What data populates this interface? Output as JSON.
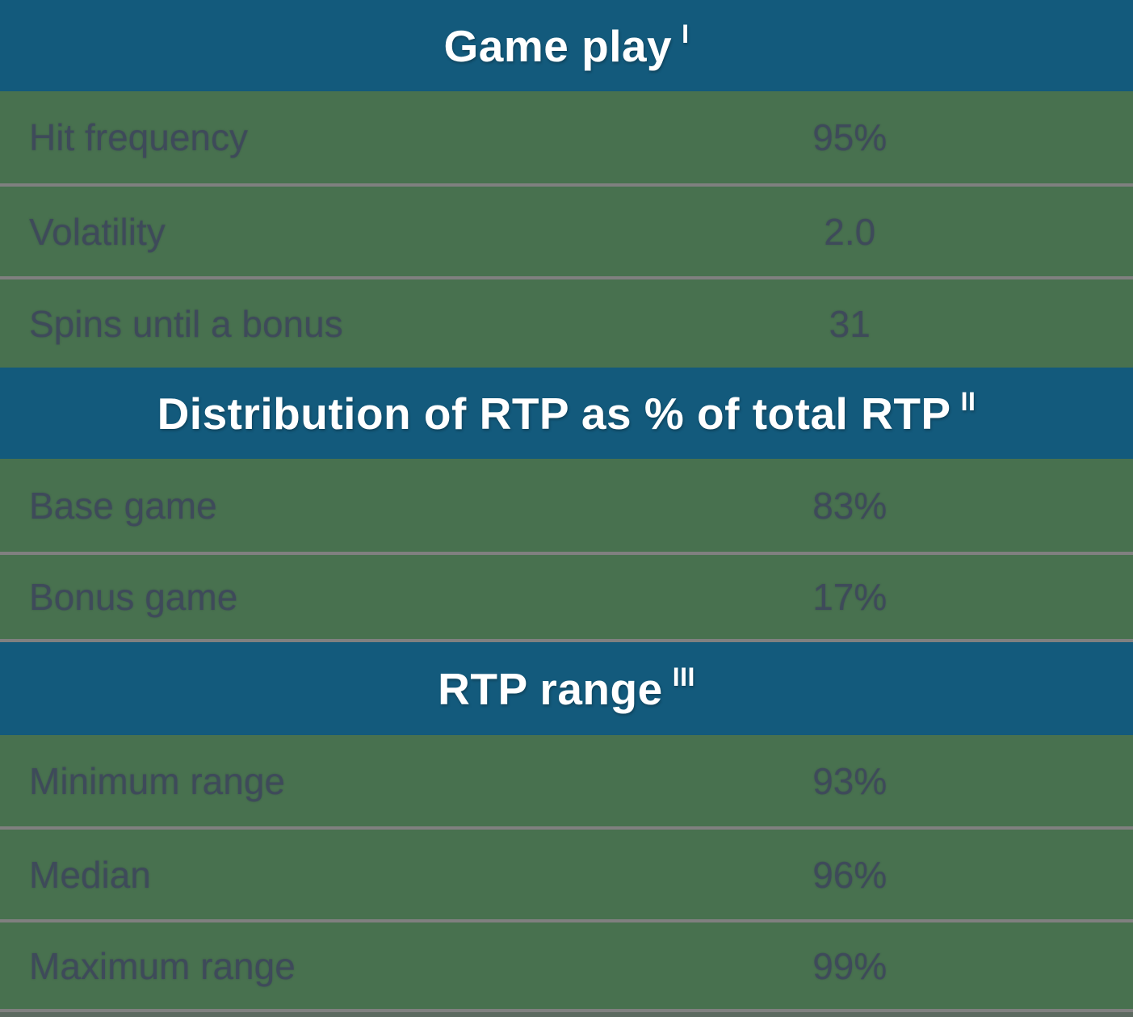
{
  "table": {
    "sections": [
      {
        "title": "Game play",
        "footnote_mark": "I",
        "rows": [
          {
            "label": "Hit frequency",
            "value": "95%"
          },
          {
            "label": "Volatility",
            "value": "2.0"
          },
          {
            "label": "Spins until a bonus",
            "value": "31"
          }
        ]
      },
      {
        "title": "Distribution of RTP as % of total RTP",
        "footnote_mark": "II",
        "rows": [
          {
            "label": "Base game",
            "value": "83%"
          },
          {
            "label": "Bonus game",
            "value": "17%"
          }
        ]
      },
      {
        "title": "RTP range",
        "footnote_mark": "III",
        "rows": [
          {
            "label": "Minimum range",
            "value": "93%"
          },
          {
            "label": "Median",
            "value": "96%"
          },
          {
            "label": "Maximum range",
            "value": "99%"
          }
        ]
      }
    ],
    "colors": {
      "header_bg": "#135A7C",
      "background_green": "#48714F",
      "row_text": "#3E4A5A",
      "header_text": "#FFFFFF",
      "divider_gray": "#808080"
    }
  }
}
